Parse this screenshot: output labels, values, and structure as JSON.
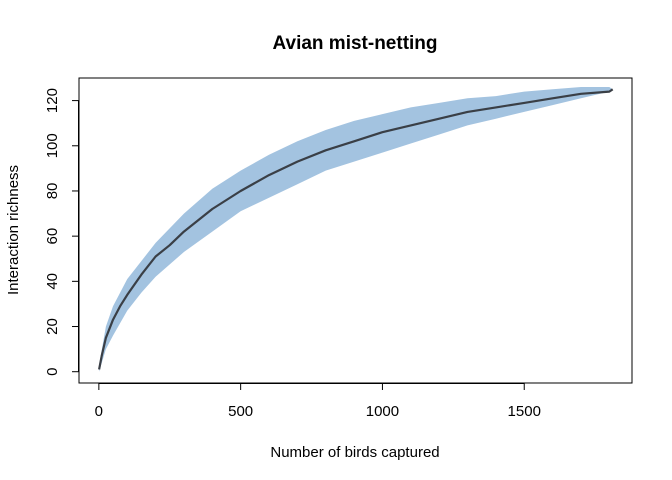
{
  "chart_data": {
    "type": "area",
    "title": "Avian mist-netting",
    "xlabel": "Number of birds captured",
    "ylabel": "Interaction richness",
    "xlim": [
      -70,
      1880
    ],
    "ylim": [
      -5,
      130
    ],
    "x_ticks": [
      0,
      500,
      1000,
      1500
    ],
    "y_ticks": [
      0,
      20,
      40,
      60,
      80,
      100,
      120
    ],
    "grid": false,
    "colors": {
      "band": "#a3c3e0",
      "line": "#3a3f46"
    },
    "series": [
      {
        "type": "band",
        "x": [
          1,
          25,
          50,
          100,
          150,
          200,
          300,
          400,
          500,
          600,
          700,
          800,
          900,
          1000,
          1100,
          1200,
          1300,
          1400,
          1500,
          1600,
          1700,
          1800,
          1812
        ],
        "lower": [
          0,
          10,
          16,
          27,
          35,
          42,
          53,
          62,
          71,
          77,
          83,
          89,
          93,
          97,
          101,
          105,
          109,
          112,
          115,
          118,
          121,
          124,
          125
        ],
        "upper": [
          3,
          20,
          29,
          41,
          49,
          57,
          70,
          81,
          89,
          96,
          102,
          107,
          111,
          114,
          117,
          119,
          121,
          122,
          124,
          125,
          126,
          126,
          125
        ]
      },
      {
        "type": "line",
        "x": [
          1,
          10,
          25,
          50,
          75,
          100,
          150,
          200,
          250,
          300,
          400,
          500,
          600,
          700,
          800,
          900,
          1000,
          1100,
          1200,
          1300,
          1400,
          1500,
          1600,
          1700,
          1800,
          1812
        ],
        "y": [
          1,
          7,
          15,
          23,
          29,
          34,
          43,
          51,
          56,
          62,
          72,
          80,
          87,
          93,
          98,
          102,
          106,
          109,
          112,
          115,
          117,
          119,
          121,
          123,
          124,
          125
        ]
      }
    ]
  }
}
